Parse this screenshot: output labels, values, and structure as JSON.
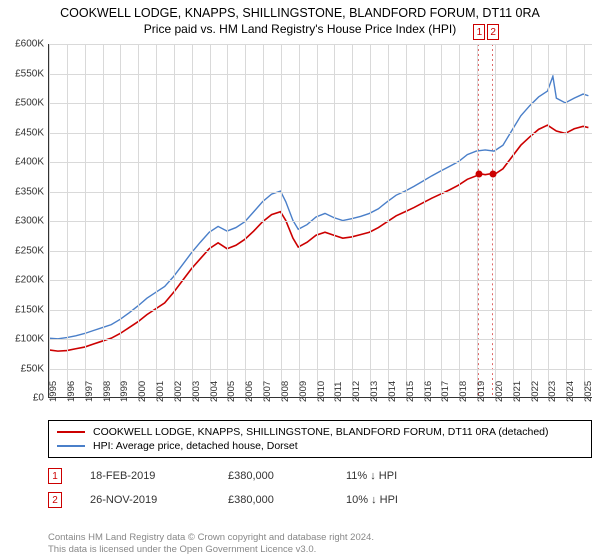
{
  "title": {
    "line1": "COOKWELL LODGE, KNAPPS, SHILLINGSTONE, BLANDFORD FORUM, DT11 0RA",
    "line2": "Price paid vs. HM Land Registry's House Price Index (HPI)"
  },
  "chart": {
    "type": "line",
    "background_color": "#ffffff",
    "grid_color": "#d9d9d9",
    "axis_color": "#333333",
    "label_fontsize": 10,
    "ylim": [
      0,
      600000
    ],
    "ytick_step": 50000,
    "y_ticks": [
      {
        "v": 0,
        "label": "£0"
      },
      {
        "v": 50000,
        "label": "£50K"
      },
      {
        "v": 100000,
        "label": "£100K"
      },
      {
        "v": 150000,
        "label": "£150K"
      },
      {
        "v": 200000,
        "label": "£200K"
      },
      {
        "v": 250000,
        "label": "£250K"
      },
      {
        "v": 300000,
        "label": "£300K"
      },
      {
        "v": 350000,
        "label": "£350K"
      },
      {
        "v": 400000,
        "label": "£400K"
      },
      {
        "v": 450000,
        "label": "£450K"
      },
      {
        "v": 500000,
        "label": "£500K"
      },
      {
        "v": 550000,
        "label": "£550K"
      },
      {
        "v": 600000,
        "label": "£600K"
      }
    ],
    "xlim": [
      1995,
      2025.5
    ],
    "x_ticks": [
      1995,
      1996,
      1997,
      1998,
      1999,
      2000,
      2001,
      2002,
      2003,
      2004,
      2005,
      2006,
      2007,
      2008,
      2009,
      2010,
      2011,
      2012,
      2013,
      2014,
      2015,
      2016,
      2017,
      2018,
      2019,
      2020,
      2021,
      2022,
      2023,
      2024,
      2025
    ],
    "series": [
      {
        "name": "price_paid",
        "label": "COOKWELL LODGE, KNAPPS, SHILLINGSTONE, BLANDFORD FORUM, DT11 0RA (detached)",
        "color": "#cc0000",
        "line_width": 1.6,
        "data": [
          [
            1995.0,
            80000
          ],
          [
            1995.5,
            78000
          ],
          [
            1996.0,
            79000
          ],
          [
            1996.5,
            82000
          ],
          [
            1997.0,
            85000
          ],
          [
            1997.5,
            90000
          ],
          [
            1998.0,
            95000
          ],
          [
            1998.5,
            100000
          ],
          [
            1999.0,
            108000
          ],
          [
            1999.5,
            118000
          ],
          [
            2000.0,
            128000
          ],
          [
            2000.5,
            140000
          ],
          [
            2001.0,
            150000
          ],
          [
            2001.5,
            160000
          ],
          [
            2002.0,
            178000
          ],
          [
            2002.5,
            198000
          ],
          [
            2003.0,
            218000
          ],
          [
            2003.5,
            235000
          ],
          [
            2004.0,
            252000
          ],
          [
            2004.5,
            262000
          ],
          [
            2005.0,
            252000
          ],
          [
            2005.5,
            258000
          ],
          [
            2006.0,
            268000
          ],
          [
            2006.5,
            282000
          ],
          [
            2007.0,
            298000
          ],
          [
            2007.5,
            310000
          ],
          [
            2008.0,
            315000
          ],
          [
            2008.3,
            300000
          ],
          [
            2008.7,
            270000
          ],
          [
            2009.0,
            255000
          ],
          [
            2009.5,
            263000
          ],
          [
            2010.0,
            275000
          ],
          [
            2010.5,
            280000
          ],
          [
            2011.0,
            275000
          ],
          [
            2011.5,
            270000
          ],
          [
            2012.0,
            272000
          ],
          [
            2012.5,
            276000
          ],
          [
            2013.0,
            280000
          ],
          [
            2013.5,
            288000
          ],
          [
            2014.0,
            298000
          ],
          [
            2014.5,
            308000
          ],
          [
            2015.0,
            315000
          ],
          [
            2015.5,
            322000
          ],
          [
            2016.0,
            330000
          ],
          [
            2016.5,
            338000
          ],
          [
            2017.0,
            345000
          ],
          [
            2017.5,
            352000
          ],
          [
            2018.0,
            360000
          ],
          [
            2018.5,
            370000
          ],
          [
            2019.0,
            376000
          ],
          [
            2019.13,
            380000
          ],
          [
            2019.5,
            378000
          ],
          [
            2019.9,
            380000
          ],
          [
            2020.0,
            378000
          ],
          [
            2020.5,
            388000
          ],
          [
            2021.0,
            408000
          ],
          [
            2021.5,
            428000
          ],
          [
            2022.0,
            442000
          ],
          [
            2022.5,
            455000
          ],
          [
            2023.0,
            462000
          ],
          [
            2023.5,
            452000
          ],
          [
            2024.0,
            448000
          ],
          [
            2024.5,
            456000
          ],
          [
            2025.0,
            460000
          ],
          [
            2025.3,
            458000
          ]
        ]
      },
      {
        "name": "hpi",
        "label": "HPI: Average price, detached house, Dorset",
        "color": "#4a7fc9",
        "line_width": 1.4,
        "data": [
          [
            1995.0,
            100000
          ],
          [
            1995.5,
            99000
          ],
          [
            1996.0,
            101000
          ],
          [
            1996.5,
            104000
          ],
          [
            1997.0,
            108000
          ],
          [
            1997.5,
            113000
          ],
          [
            1998.0,
            118000
          ],
          [
            1998.5,
            123000
          ],
          [
            1999.0,
            132000
          ],
          [
            1999.5,
            143000
          ],
          [
            2000.0,
            155000
          ],
          [
            2000.5,
            168000
          ],
          [
            2001.0,
            178000
          ],
          [
            2001.5,
            188000
          ],
          [
            2002.0,
            205000
          ],
          [
            2002.5,
            225000
          ],
          [
            2003.0,
            245000
          ],
          [
            2003.5,
            263000
          ],
          [
            2004.0,
            280000
          ],
          [
            2004.5,
            290000
          ],
          [
            2005.0,
            282000
          ],
          [
            2005.5,
            288000
          ],
          [
            2006.0,
            298000
          ],
          [
            2006.5,
            315000
          ],
          [
            2007.0,
            332000
          ],
          [
            2007.5,
            345000
          ],
          [
            2008.0,
            350000
          ],
          [
            2008.3,
            332000
          ],
          [
            2008.7,
            300000
          ],
          [
            2009.0,
            285000
          ],
          [
            2009.5,
            293000
          ],
          [
            2010.0,
            306000
          ],
          [
            2010.5,
            312000
          ],
          [
            2011.0,
            305000
          ],
          [
            2011.5,
            300000
          ],
          [
            2012.0,
            303000
          ],
          [
            2012.5,
            307000
          ],
          [
            2013.0,
            312000
          ],
          [
            2013.5,
            320000
          ],
          [
            2014.0,
            332000
          ],
          [
            2014.5,
            343000
          ],
          [
            2015.0,
            350000
          ],
          [
            2015.5,
            358000
          ],
          [
            2016.0,
            367000
          ],
          [
            2016.5,
            376000
          ],
          [
            2017.0,
            384000
          ],
          [
            2017.5,
            392000
          ],
          [
            2018.0,
            400000
          ],
          [
            2018.5,
            412000
          ],
          [
            2019.0,
            418000
          ],
          [
            2019.5,
            420000
          ],
          [
            2020.0,
            418000
          ],
          [
            2020.5,
            428000
          ],
          [
            2021.0,
            453000
          ],
          [
            2021.5,
            478000
          ],
          [
            2022.0,
            495000
          ],
          [
            2022.5,
            510000
          ],
          [
            2023.0,
            520000
          ],
          [
            2023.3,
            545000
          ],
          [
            2023.5,
            508000
          ],
          [
            2024.0,
            500000
          ],
          [
            2024.5,
            508000
          ],
          [
            2025.0,
            515000
          ],
          [
            2025.3,
            512000
          ]
        ]
      }
    ],
    "sale_markers": [
      {
        "idx": "1",
        "x": 2019.13,
        "y": 380000,
        "color": "#cc0000"
      },
      {
        "idx": "2",
        "x": 2019.9,
        "y": 380000,
        "color": "#cc0000"
      }
    ]
  },
  "legend": {
    "items": [
      {
        "color": "#cc0000",
        "label": "COOKWELL LODGE, KNAPPS, SHILLINGSTONE, BLANDFORD FORUM, DT11 0RA (detached)"
      },
      {
        "color": "#4a7fc9",
        "label": "HPI: Average price, detached house, Dorset"
      }
    ]
  },
  "sales": [
    {
      "idx": "1",
      "date": "18-FEB-2019",
      "price": "£380,000",
      "delta": "11% ↓ HPI"
    },
    {
      "idx": "2",
      "date": "26-NOV-2019",
      "price": "£380,000",
      "delta": "10% ↓ HPI"
    }
  ],
  "footer": {
    "line1": "Contains HM Land Registry data © Crown copyright and database right 2024.",
    "line2": "This data is licensed under the Open Government Licence v3.0."
  }
}
